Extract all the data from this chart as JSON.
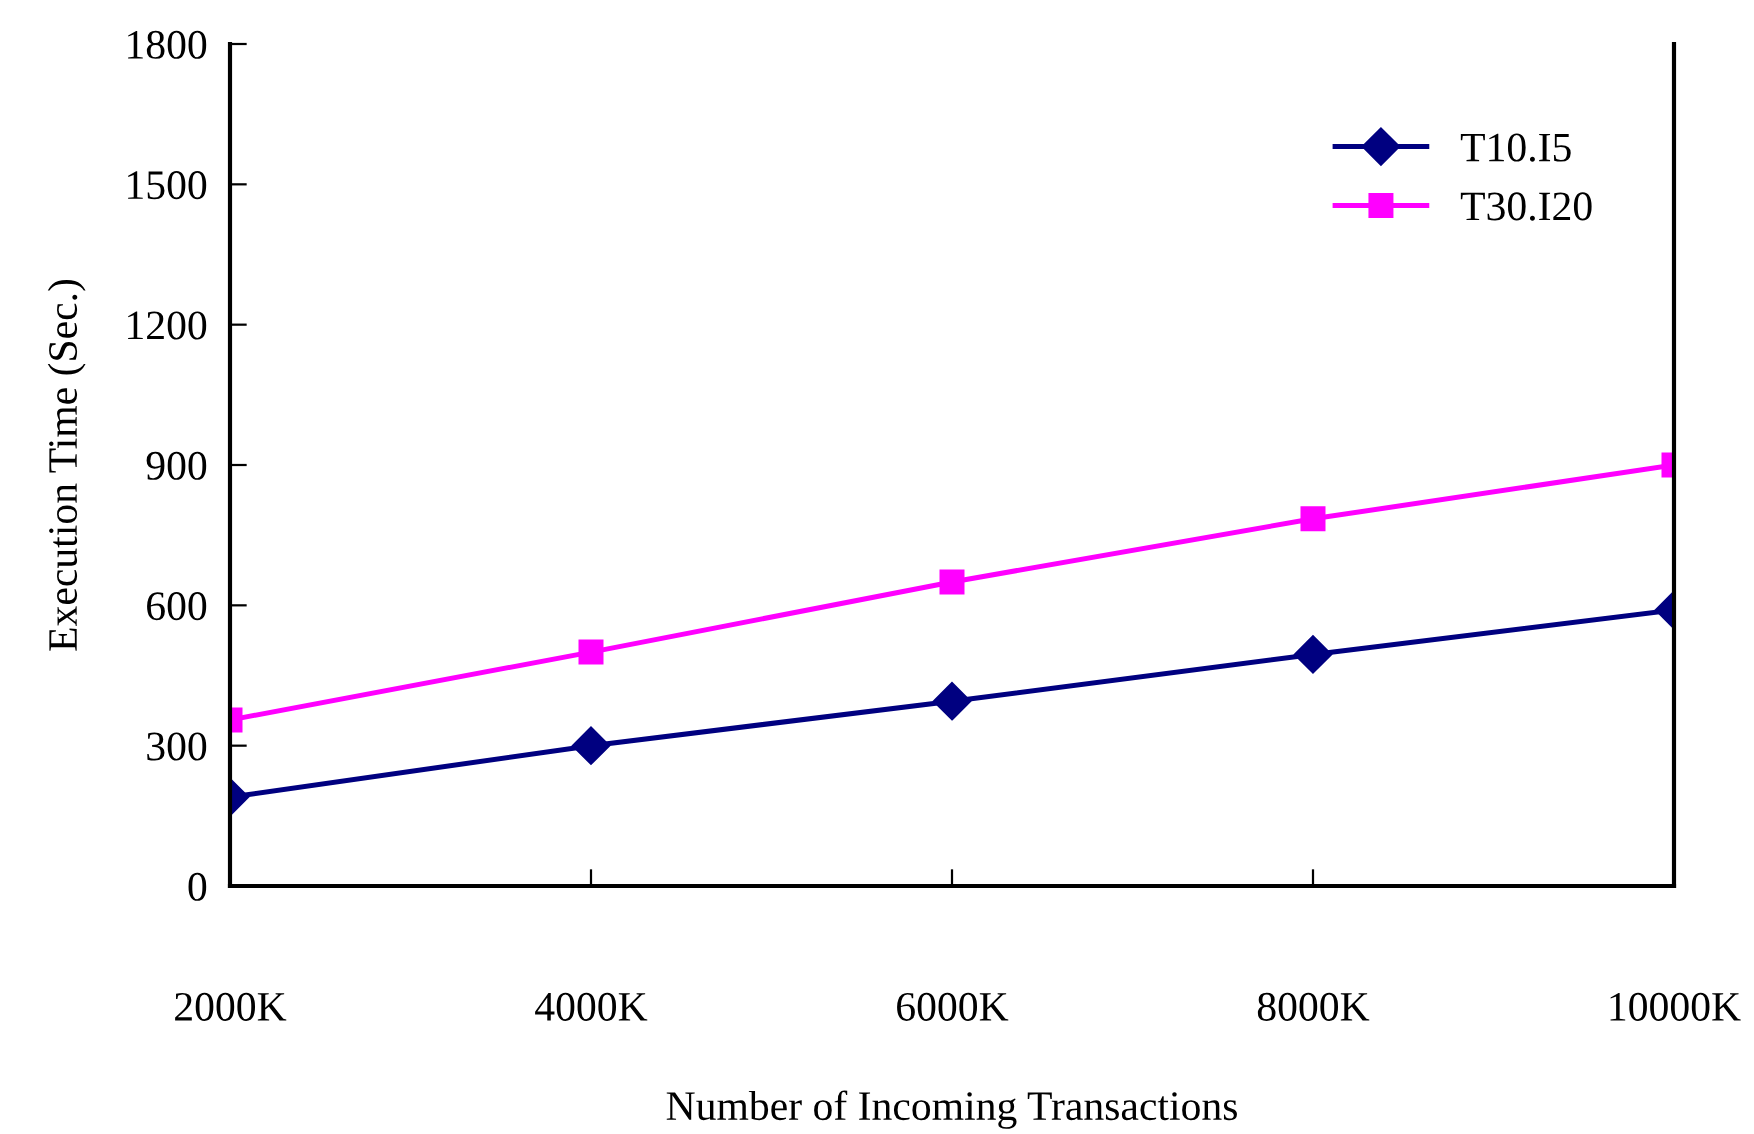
{
  "chart_data": {
    "type": "line",
    "xlabel": "Number of Incoming Transactions",
    "ylabel": "Execution Time (Sec.)",
    "x": [
      2000,
      4000,
      6000,
      8000,
      10000
    ],
    "xlim": [
      2000,
      10000
    ],
    "xticks": [
      {
        "value": 2000,
        "label": "2000K"
      },
      {
        "value": 4000,
        "label": "4000K"
      },
      {
        "value": 6000,
        "label": "6000K"
      },
      {
        "value": 8000,
        "label": "8000K"
      },
      {
        "value": 10000,
        "label": "10000K"
      }
    ],
    "ylim": [
      0,
      1800
    ],
    "yticks": [
      0,
      300,
      600,
      900,
      1200,
      1500,
      1800
    ],
    "series": [
      {
        "name": "T10.I5",
        "color": "#000080",
        "marker": "diamond",
        "values": [
          190,
          300,
          395,
          495,
          590
        ]
      },
      {
        "name": "T30.I20",
        "color": "#ff00ff",
        "marker": "square",
        "values": [
          355,
          500,
          650,
          785,
          900
        ]
      }
    ],
    "legend": "top right",
    "grid": false,
    "line_style": "solid"
  }
}
